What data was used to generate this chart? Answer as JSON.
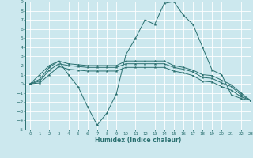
{
  "background_color": "#cce8ee",
  "grid_color": "#ffffff",
  "line_color": "#2a7070",
  "xlabel": "Humidex (Indice chaleur)",
  "xlim": [
    -0.5,
    23
  ],
  "ylim": [
    -5,
    9
  ],
  "x_ticks": [
    0,
    1,
    2,
    3,
    4,
    5,
    6,
    7,
    8,
    9,
    10,
    11,
    12,
    13,
    14,
    15,
    16,
    17,
    18,
    19,
    20,
    21,
    22,
    23
  ],
  "y_ticks": [
    -5,
    -4,
    -3,
    -2,
    -1,
    0,
    1,
    2,
    3,
    4,
    5,
    6,
    7,
    8,
    9
  ],
  "curves": [
    [
      0,
      1,
      2,
      2.5,
      1.0,
      -0.3,
      -2.5,
      -4.5,
      -3.2,
      -1.1,
      3.2,
      5.0,
      7.0,
      6.5,
      8.8,
      9.0,
      7.5,
      6.5,
      4.0,
      1.5,
      1.0,
      -1.2,
      -1.6,
      -1.8
    ],
    [
      0,
      0.5,
      1.8,
      2.5,
      2.2,
      2.1,
      2.0,
      2.0,
      2.0,
      2.0,
      2.5,
      2.5,
      2.5,
      2.5,
      2.5,
      2.0,
      1.8,
      1.5,
      1.0,
      0.9,
      0.4,
      -0.1,
      -1.0,
      -1.8
    ],
    [
      0,
      0.3,
      1.5,
      2.2,
      2.0,
      1.9,
      1.8,
      1.8,
      1.8,
      1.8,
      2.2,
      2.2,
      2.2,
      2.2,
      2.2,
      1.8,
      1.6,
      1.3,
      0.7,
      0.6,
      0.1,
      -0.3,
      -1.2,
      -1.8
    ],
    [
      0,
      0.1,
      1.0,
      1.9,
      1.6,
      1.5,
      1.4,
      1.4,
      1.4,
      1.4,
      1.8,
      1.8,
      1.8,
      1.8,
      1.8,
      1.4,
      1.2,
      0.9,
      0.3,
      0.2,
      -0.3,
      -0.7,
      -1.4,
      -1.8
    ]
  ]
}
